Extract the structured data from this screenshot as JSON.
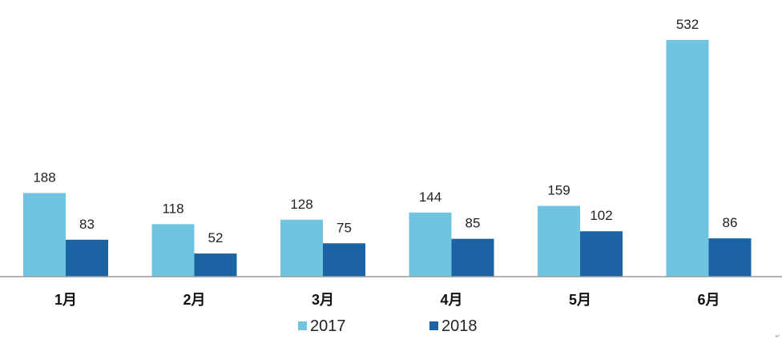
{
  "chart_data": {
    "type": "bar",
    "categories": [
      "1月",
      "2月",
      "3月",
      "4月",
      "5月",
      "6月"
    ],
    "series": [
      {
        "name": "2017",
        "values": [
          188,
          118,
          128,
          144,
          159,
          532
        ],
        "color": "#71c4df"
      },
      {
        "name": "2018",
        "values": [
          83,
          52,
          75,
          85,
          102,
          86
        ],
        "color": "#1c63a4"
      }
    ],
    "ylim": [
      0,
      560
    ],
    "grid": false,
    "data_labels": true,
    "legend": "bottom-center"
  },
  "corner_mark": "↵"
}
